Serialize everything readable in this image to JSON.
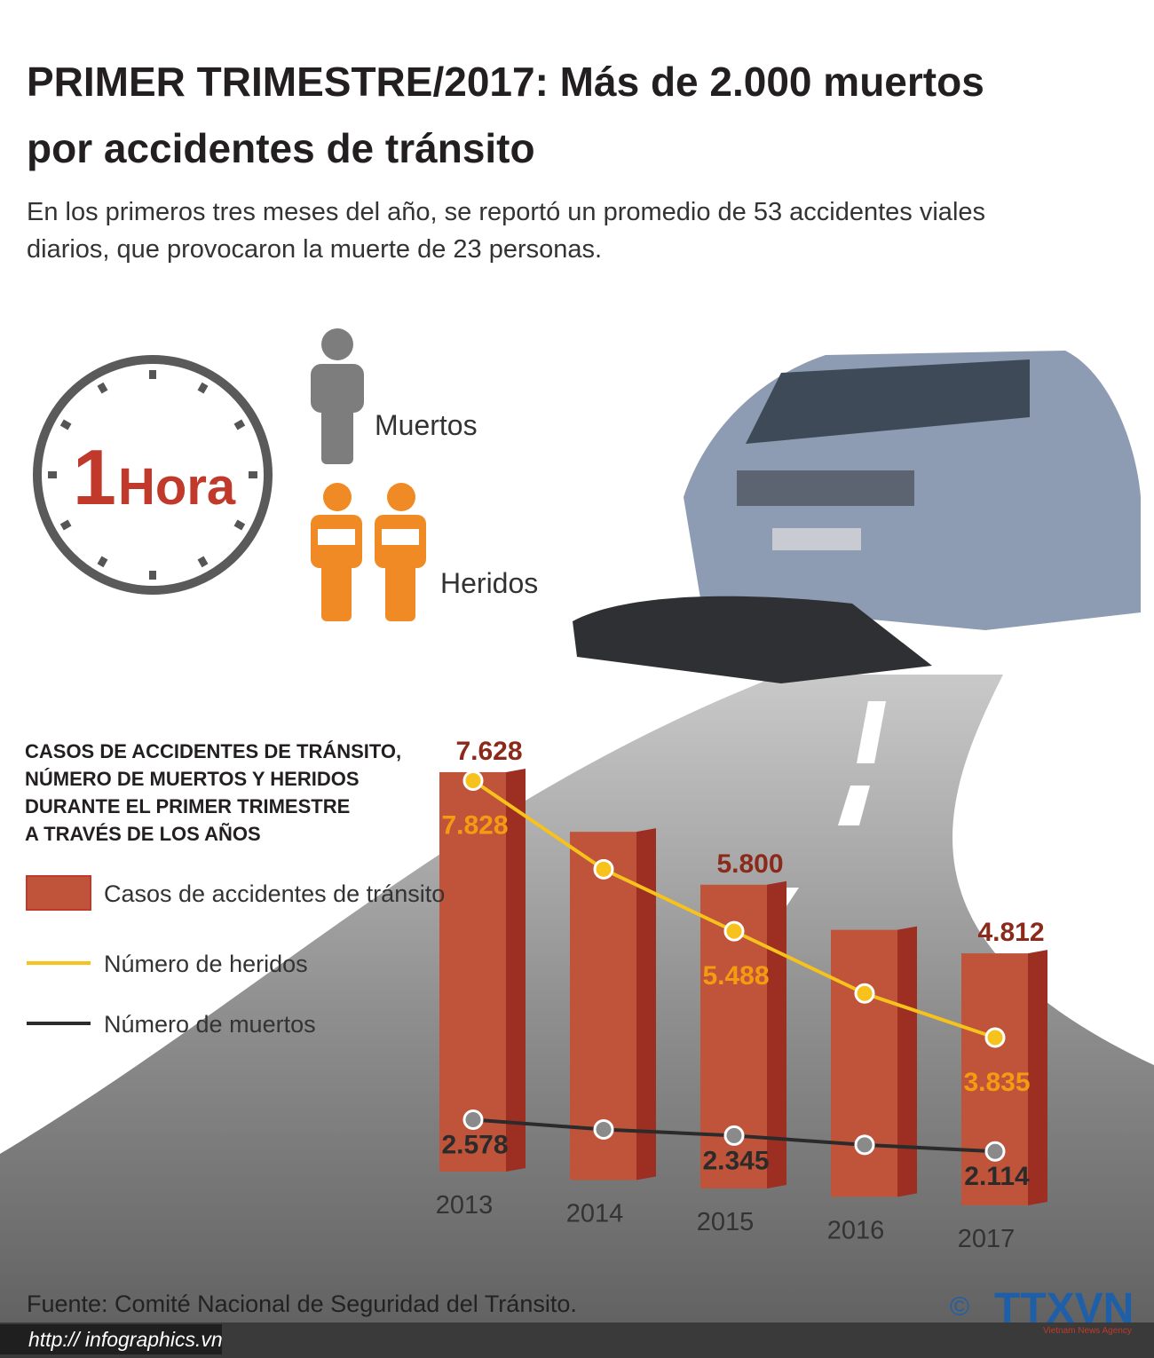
{
  "header": {
    "title_lines": [
      "PRIMER TRIMESTRE/2017: Más de 2.000 muertos",
      "por accidentes de tránsito"
    ],
    "subtitle_lines": [
      "En los primeros tres meses del año, se reportó un promedio de 53 accidentes viales",
      "diarios, que provocaron la muerte de 23 personas."
    ]
  },
  "clock": {
    "number": "1",
    "unit": "Hora"
  },
  "icons": {
    "dead": "Muertos",
    "injured": "Heridos"
  },
  "chart_data": {
    "type": "bar-line",
    "title": [
      "CASOS DE ACCIDENTES DE TRÁNSITO,",
      "NÚMERO DE MUERTOS Y HERIDOS",
      "DURANTE EL PRIMER TRIMESTRE",
      "A TRAVÉS DE LOS AÑOS"
    ],
    "categories": [
      "2013",
      "2014",
      "2015",
      "2016",
      "2017"
    ],
    "series": [
      {
        "name": "Casos de accidentes de tránsito",
        "type": "bar",
        "color": "#c0543a",
        "values": [
          7628,
          6650,
          5800,
          5100,
          4812
        ],
        "value_labels": [
          "7.628",
          null,
          "5.800",
          null,
          "4.812"
        ]
      },
      {
        "name": "Número de heridos",
        "type": "line",
        "color": "#f7c21b",
        "values": [
          7828,
          6450,
          5488,
          4520,
          3835
        ],
        "value_labels": [
          "7.828",
          null,
          "5.488",
          null,
          "3.835"
        ]
      },
      {
        "name": "Número de muertos",
        "type": "line",
        "color": "#2b2b2b",
        "values": [
          2578,
          2435,
          2345,
          2210,
          2114
        ],
        "value_labels": [
          "2.578",
          null,
          "2.345",
          null,
          "2.114"
        ]
      }
    ]
  },
  "footer": {
    "source": "Fuente: Comité Nacional de Seguridad del Tránsito.",
    "url": "http:// infographics.vn",
    "logo": "TTXVN",
    "logo_sub": "Vietnam News Agency",
    "copyright": "©"
  }
}
